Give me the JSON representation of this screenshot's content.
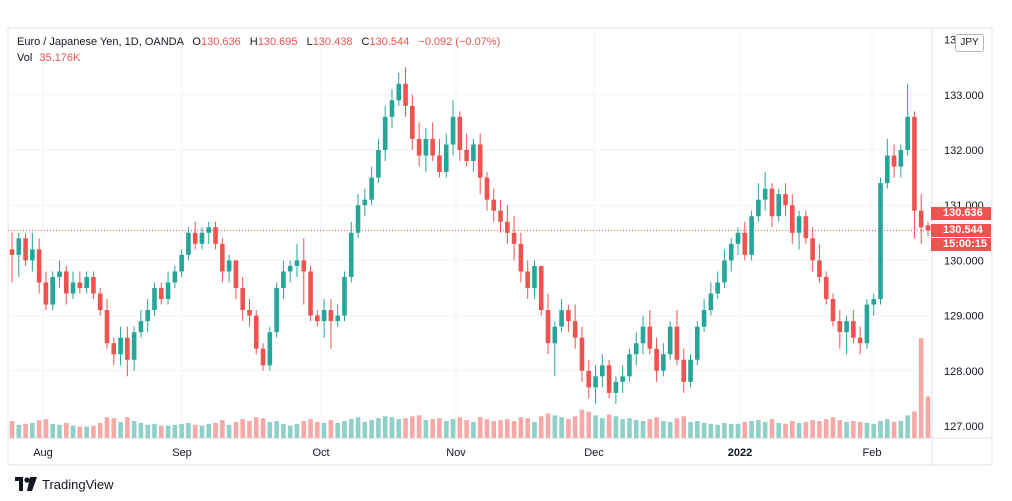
{
  "legend": {
    "symbol": "Euro / Japanese Yen, 1D, OANDA",
    "open_label": "O",
    "open": "130.636",
    "high_label": "H",
    "high": "130.695",
    "low_label": "L",
    "low": "130.438",
    "close_label": "C",
    "close": "130.544",
    "change": "−0.092 (−0.07%)",
    "vol_label": "Vol",
    "vol": "35.176K"
  },
  "currency": "JPY",
  "tags": {
    "last": "130.636",
    "close": "130.544",
    "countdown": "15:00:15"
  },
  "brand": "TradingView",
  "colors": {
    "up": "#26a69a",
    "down": "#ef5350",
    "up_vol": "#8fd0c8",
    "down_vol": "#f7a9a7",
    "grid": "#f0f3fa",
    "axis_text": "#131722"
  },
  "chart_data": {
    "type": "candlestick",
    "grid": true,
    "y_axis": {
      "position": "right",
      "ylim": [
        126.8,
        134.0
      ],
      "ticks": [
        "127.000",
        "128.000",
        "129.000",
        "130.000",
        "131.000",
        "132.000",
        "133.000"
      ]
    },
    "x_axis": {
      "ticks": [
        "Aug",
        "Sep",
        "Oct",
        "Nov",
        "Dec",
        "2022",
        "Feb"
      ]
    },
    "current_price_line": 130.544,
    "candles": [
      [
        130.2,
        130.5,
        129.6,
        130.1,
        18
      ],
      [
        130.1,
        130.5,
        129.7,
        130.4,
        14
      ],
      [
        130.4,
        130.5,
        129.9,
        130.0,
        15
      ],
      [
        130.0,
        130.5,
        129.8,
        130.2,
        16
      ],
      [
        130.2,
        130.4,
        129.4,
        129.6,
        19
      ],
      [
        129.6,
        129.8,
        129.1,
        129.2,
        20
      ],
      [
        129.2,
        129.8,
        129.1,
        129.7,
        15
      ],
      [
        129.7,
        130.0,
        129.5,
        129.8,
        14
      ],
      [
        129.8,
        129.9,
        129.2,
        129.4,
        16
      ],
      [
        129.4,
        129.8,
        129.3,
        129.6,
        13
      ],
      [
        129.6,
        129.8,
        129.4,
        129.5,
        12
      ],
      [
        129.5,
        129.8,
        129.4,
        129.7,
        12
      ],
      [
        129.7,
        129.8,
        129.3,
        129.4,
        13
      ],
      [
        129.4,
        129.5,
        129.0,
        129.1,
        16
      ],
      [
        129.1,
        129.3,
        128.4,
        128.5,
        22
      ],
      [
        128.5,
        128.6,
        128.1,
        128.3,
        21
      ],
      [
        128.3,
        128.8,
        128.1,
        128.6,
        17
      ],
      [
        128.6,
        128.8,
        127.9,
        128.2,
        22
      ],
      [
        128.2,
        128.8,
        128.0,
        128.7,
        18
      ],
      [
        128.7,
        129.1,
        128.6,
        128.9,
        16
      ],
      [
        128.9,
        129.3,
        128.7,
        129.1,
        14
      ],
      [
        129.1,
        129.6,
        129.0,
        129.5,
        15
      ],
      [
        129.5,
        129.6,
        129.2,
        129.3,
        13
      ],
      [
        129.3,
        129.8,
        129.2,
        129.6,
        13
      ],
      [
        129.6,
        129.9,
        129.5,
        129.8,
        14
      ],
      [
        129.8,
        130.2,
        129.7,
        130.1,
        15
      ],
      [
        130.1,
        130.6,
        130.0,
        130.5,
        16
      ],
      [
        130.5,
        130.7,
        130.2,
        130.3,
        14
      ],
      [
        130.3,
        130.6,
        130.2,
        130.5,
        13
      ],
      [
        130.5,
        130.7,
        130.3,
        130.6,
        15
      ],
      [
        130.6,
        130.7,
        130.2,
        130.3,
        16
      ],
      [
        130.3,
        130.4,
        129.6,
        129.8,
        19
      ],
      [
        129.8,
        130.1,
        129.6,
        130.0,
        14
      ],
      [
        130.0,
        130.0,
        129.3,
        129.5,
        17
      ],
      [
        129.5,
        129.7,
        128.9,
        129.1,
        20
      ],
      [
        129.1,
        129.3,
        128.8,
        129.0,
        18
      ],
      [
        129.0,
        129.1,
        128.3,
        128.4,
        22
      ],
      [
        128.4,
        128.5,
        128.0,
        128.1,
        21
      ],
      [
        128.1,
        128.8,
        128.0,
        128.7,
        17
      ],
      [
        128.7,
        129.6,
        128.6,
        129.5,
        18
      ],
      [
        129.5,
        130.0,
        129.3,
        129.8,
        15
      ],
      [
        129.8,
        130.0,
        129.6,
        129.9,
        13
      ],
      [
        129.9,
        130.3,
        129.7,
        130.0,
        15
      ],
      [
        130.0,
        130.4,
        129.2,
        129.8,
        18
      ],
      [
        129.8,
        129.9,
        128.9,
        129.0,
        20
      ],
      [
        129.0,
        129.1,
        128.8,
        128.9,
        17
      ],
      [
        128.9,
        129.3,
        128.6,
        129.1,
        16
      ],
      [
        129.1,
        129.3,
        128.4,
        128.9,
        19
      ],
      [
        128.9,
        129.2,
        128.8,
        129.0,
        16
      ],
      [
        129.0,
        129.8,
        128.9,
        129.7,
        18
      ],
      [
        129.7,
        130.7,
        129.6,
        130.5,
        20
      ],
      [
        130.5,
        131.2,
        130.4,
        131.0,
        22
      ],
      [
        131.0,
        131.3,
        130.8,
        131.1,
        17
      ],
      [
        131.1,
        131.7,
        131.0,
        131.5,
        19
      ],
      [
        131.5,
        132.2,
        131.4,
        132.0,
        21
      ],
      [
        132.0,
        132.8,
        131.8,
        132.6,
        23
      ],
      [
        132.6,
        133.1,
        132.4,
        132.9,
        22
      ],
      [
        132.9,
        133.4,
        132.8,
        133.2,
        20
      ],
      [
        133.2,
        133.5,
        132.6,
        132.8,
        21
      ],
      [
        132.8,
        133.0,
        132.0,
        132.2,
        23
      ],
      [
        132.2,
        132.5,
        131.7,
        131.9,
        24
      ],
      [
        131.9,
        132.4,
        131.6,
        132.2,
        19
      ],
      [
        132.2,
        132.5,
        131.8,
        131.9,
        20
      ],
      [
        131.9,
        132.2,
        131.5,
        131.6,
        21
      ],
      [
        131.6,
        132.3,
        131.5,
        132.1,
        18
      ],
      [
        132.1,
        132.9,
        131.9,
        132.6,
        20
      ],
      [
        132.6,
        132.7,
        131.8,
        132.0,
        22
      ],
      [
        132.0,
        132.3,
        131.7,
        131.8,
        19
      ],
      [
        131.8,
        132.2,
        131.6,
        132.1,
        17
      ],
      [
        132.1,
        132.3,
        131.2,
        131.5,
        22
      ],
      [
        131.5,
        131.6,
        130.9,
        131.1,
        20
      ],
      [
        131.1,
        131.3,
        130.7,
        130.9,
        18
      ],
      [
        130.9,
        131.1,
        130.5,
        130.7,
        19
      ],
      [
        130.7,
        131.0,
        130.3,
        130.5,
        20
      ],
      [
        130.5,
        130.8,
        130.0,
        130.3,
        18
      ],
      [
        130.3,
        130.5,
        129.6,
        129.8,
        22
      ],
      [
        129.8,
        130.0,
        129.3,
        129.5,
        21
      ],
      [
        129.5,
        130.0,
        129.3,
        129.9,
        17
      ],
      [
        129.9,
        129.9,
        129.0,
        129.1,
        23
      ],
      [
        129.1,
        129.4,
        128.3,
        128.5,
        26
      ],
      [
        128.5,
        128.9,
        127.9,
        128.8,
        24
      ],
      [
        128.8,
        129.3,
        128.7,
        129.1,
        22
      ],
      [
        129.1,
        129.2,
        128.7,
        128.9,
        20
      ],
      [
        128.9,
        129.2,
        128.4,
        128.6,
        23
      ],
      [
        128.6,
        128.8,
        127.8,
        128.0,
        30
      ],
      [
        128.0,
        128.2,
        127.5,
        127.7,
        28
      ],
      [
        127.7,
        128.1,
        127.4,
        127.9,
        24
      ],
      [
        127.9,
        128.3,
        127.7,
        128.1,
        21
      ],
      [
        128.1,
        128.2,
        127.5,
        127.6,
        25
      ],
      [
        127.6,
        127.9,
        127.4,
        127.8,
        23
      ],
      [
        127.8,
        128.1,
        127.6,
        127.9,
        20
      ],
      [
        127.9,
        128.4,
        127.8,
        128.3,
        21
      ],
      [
        128.3,
        128.7,
        128.1,
        128.5,
        19
      ],
      [
        128.5,
        129.0,
        128.3,
        128.8,
        18
      ],
      [
        128.8,
        129.1,
        128.3,
        128.4,
        20
      ],
      [
        128.4,
        128.6,
        127.8,
        128.0,
        22
      ],
      [
        128.0,
        128.5,
        127.9,
        128.3,
        18
      ],
      [
        128.3,
        128.9,
        128.2,
        128.8,
        17
      ],
      [
        128.8,
        129.1,
        128.1,
        128.2,
        21
      ],
      [
        128.2,
        128.4,
        127.6,
        127.8,
        23
      ],
      [
        127.8,
        128.3,
        127.7,
        128.2,
        17
      ],
      [
        128.2,
        128.9,
        128.1,
        128.8,
        18
      ],
      [
        128.8,
        129.3,
        128.7,
        129.1,
        16
      ],
      [
        129.1,
        129.6,
        129.0,
        129.4,
        15
      ],
      [
        129.4,
        129.8,
        129.3,
        129.6,
        14
      ],
      [
        129.6,
        130.2,
        129.5,
        130.0,
        16
      ],
      [
        130.0,
        130.4,
        129.8,
        130.3,
        15
      ],
      [
        130.3,
        130.6,
        130.1,
        130.5,
        15
      ],
      [
        130.5,
        130.7,
        130.0,
        130.1,
        17
      ],
      [
        130.1,
        130.9,
        130.0,
        130.8,
        18
      ],
      [
        130.8,
        131.4,
        130.7,
        131.1,
        19
      ],
      [
        131.1,
        131.6,
        130.9,
        131.3,
        17
      ],
      [
        131.3,
        131.4,
        130.6,
        130.8,
        20
      ],
      [
        130.8,
        131.3,
        130.7,
        131.2,
        16
      ],
      [
        131.2,
        131.4,
        130.8,
        131.0,
        15
      ],
      [
        131.0,
        131.2,
        130.3,
        130.5,
        18
      ],
      [
        130.5,
        130.9,
        130.2,
        130.8,
        16
      ],
      [
        130.8,
        130.9,
        130.3,
        130.4,
        17
      ],
      [
        130.4,
        130.6,
        129.8,
        130.0,
        19
      ],
      [
        130.0,
        130.3,
        129.6,
        129.7,
        18
      ],
      [
        129.7,
        129.8,
        129.2,
        129.3,
        20
      ],
      [
        129.3,
        129.4,
        128.8,
        128.9,
        22
      ],
      [
        128.9,
        129.1,
        128.4,
        128.7,
        19
      ],
      [
        128.7,
        129.0,
        128.3,
        128.9,
        17
      ],
      [
        128.9,
        129.1,
        128.5,
        128.6,
        18
      ],
      [
        128.6,
        128.8,
        128.3,
        128.5,
        17
      ],
      [
        128.5,
        129.3,
        128.4,
        129.2,
        16
      ],
      [
        129.2,
        129.4,
        129.0,
        129.3,
        15
      ],
      [
        129.3,
        131.5,
        129.2,
        131.4,
        18
      ],
      [
        131.4,
        132.2,
        131.3,
        131.9,
        20
      ],
      [
        131.9,
        132.1,
        131.5,
        131.7,
        17
      ],
      [
        131.7,
        132.1,
        131.5,
        132.0,
        18
      ],
      [
        132.0,
        133.2,
        131.9,
        132.6,
        24
      ],
      [
        132.6,
        132.7,
        130.4,
        130.9,
        28
      ],
      [
        130.9,
        131.2,
        130.3,
        130.6,
        106
      ],
      [
        130.636,
        130.695,
        130.438,
        130.544,
        44
      ]
    ]
  }
}
